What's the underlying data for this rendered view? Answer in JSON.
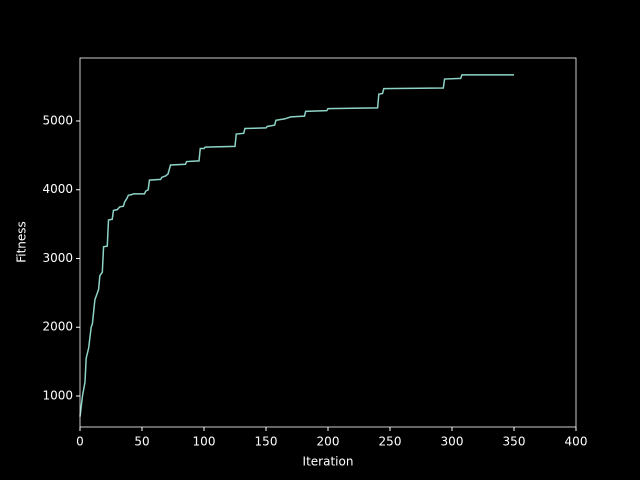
{
  "chart_data": {
    "type": "line",
    "xlabel": "Iteration",
    "ylabel": "Fitness",
    "x": [
      0,
      2,
      4,
      5,
      7,
      9,
      10,
      12,
      14,
      15,
      16,
      18,
      19,
      22,
      23,
      26,
      27,
      30,
      32,
      35,
      36,
      38,
      39,
      42,
      43,
      52,
      53,
      55,
      56,
      65,
      66,
      69,
      71,
      73,
      85,
      86,
      96,
      97,
      100,
      101,
      125,
      126,
      132,
      133,
      150,
      151,
      157,
      158,
      165,
      170,
      181,
      182,
      199,
      200,
      240,
      241,
      244,
      245,
      293,
      294,
      307,
      308,
      350
    ],
    "series": [
      {
        "color": "#8dd3c7",
        "values": [
          700,
          1000,
          1200,
          1550,
          1700,
          2000,
          2050,
          2400,
          2500,
          2550,
          2750,
          2800,
          3170,
          3180,
          3560,
          3570,
          3700,
          3710,
          3750,
          3760,
          3820,
          3880,
          3920,
          3930,
          3940,
          3940,
          3980,
          4000,
          4140,
          4150,
          4180,
          4200,
          4230,
          4360,
          4370,
          4410,
          4420,
          4600,
          4600,
          4620,
          4630,
          4810,
          4820,
          4890,
          4900,
          4920,
          4940,
          5010,
          5030,
          5060,
          5070,
          5140,
          5150,
          5180,
          5190,
          5390,
          5400,
          5470,
          5480,
          5610,
          5620,
          5670,
          5670
        ]
      }
    ],
    "xlim": [
      0,
      400
    ],
    "xticks": [
      0,
      50,
      100,
      150,
      200,
      250,
      300,
      350,
      400
    ],
    "ylim": [
      549,
      5916
    ],
    "yticks": [
      1000,
      2000,
      3000,
      4000,
      5000
    ]
  }
}
